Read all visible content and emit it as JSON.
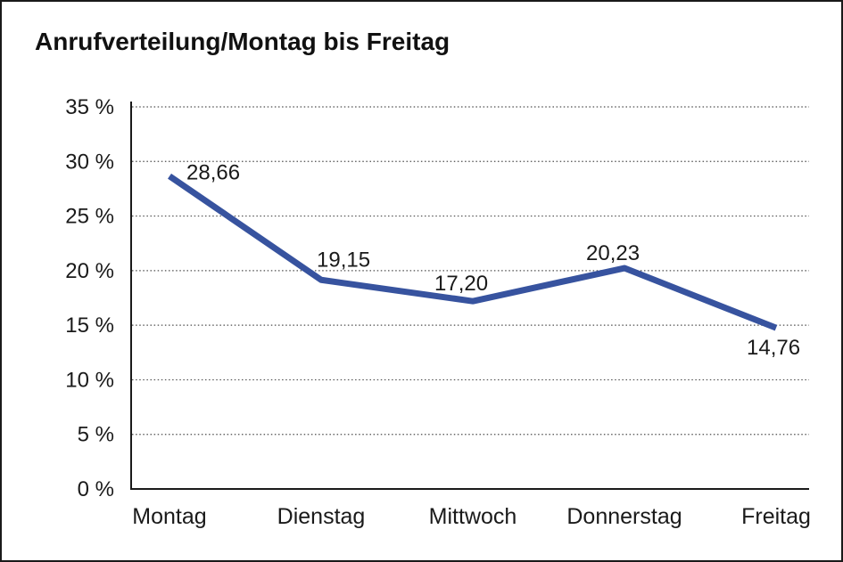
{
  "window": {
    "background": "#ffffff",
    "border_color": "#1a1a1a"
  },
  "chart_data": {
    "type": "line",
    "title": "Anrufverteilung/Montag bis Freitag",
    "categories": [
      "Montag",
      "Dienstag",
      "Mittwoch",
      "Donnerstag",
      "Freitag"
    ],
    "values": [
      28.66,
      19.15,
      17.2,
      20.23,
      14.76
    ],
    "point_labels": [
      "28,66",
      "19,15",
      "17,20",
      "20,23",
      "14,76"
    ],
    "xlabel": "",
    "ylabel": "",
    "ylim": [
      0,
      35
    ],
    "ytick_step": 5,
    "ytick_labels": [
      "0 %",
      "5 %",
      "10 %",
      "15 %",
      "20 %",
      "25 %",
      "30 %",
      "35 %"
    ],
    "grid": "horizontal-dotted",
    "legend": "none",
    "line_color": "#37539f",
    "text_color": "#1a1a1a"
  }
}
